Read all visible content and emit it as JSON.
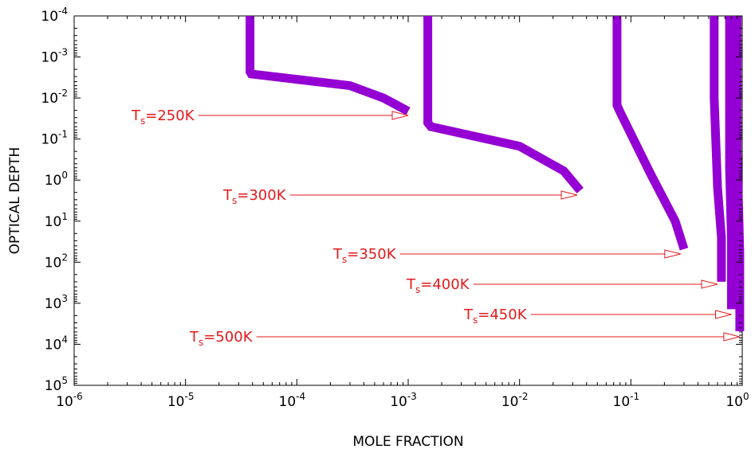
{
  "chart_data": {
    "type": "line",
    "title": "",
    "xlabel": "MOLE FRACTION",
    "ylabel": "OPTICAL DEPTH",
    "x_scale": "log",
    "y_scale": "log",
    "y_inverted": true,
    "xlim": [
      1e-06,
      1
    ],
    "ylim": [
      0.0001,
      100000.0
    ],
    "grid": false,
    "x_ticks": [
      {
        "base": "10",
        "exp": "-6",
        "value": 1e-06
      },
      {
        "base": "10",
        "exp": "-5",
        "value": 1e-05
      },
      {
        "base": "10",
        "exp": "-4",
        "value": 0.0001
      },
      {
        "base": "10",
        "exp": "-3",
        "value": 0.001
      },
      {
        "base": "10",
        "exp": "-2",
        "value": 0.01
      },
      {
        "base": "10",
        "exp": "-1",
        "value": 0.1
      },
      {
        "base": "10",
        "exp": "0",
        "value": 1
      }
    ],
    "y_ticks": [
      {
        "base": "10",
        "exp": "-4",
        "value": 0.0001
      },
      {
        "base": "10",
        "exp": "-3",
        "value": 0.001
      },
      {
        "base": "10",
        "exp": "-2",
        "value": 0.01
      },
      {
        "base": "10",
        "exp": "-1",
        "value": 0.1
      },
      {
        "base": "10",
        "exp": "0",
        "value": 1
      },
      {
        "base": "10",
        "exp": "1",
        "value": 10
      },
      {
        "base": "10",
        "exp": "2",
        "value": 100
      },
      {
        "base": "10",
        "exp": "3",
        "value": 1000
      },
      {
        "base": "10",
        "exp": "4",
        "value": 10000
      },
      {
        "base": "10",
        "exp": "5",
        "value": 100000
      }
    ],
    "series_color": "#9400d3",
    "annotation_color": "#e31a1c",
    "series": [
      {
        "x": [
          3.8e-05,
          3.8e-05,
          3.9e-05,
          0.0003,
          0.0006,
          0.001
        ],
        "y": [
          0.0001,
          0.0023,
          0.0026,
          0.005,
          0.01,
          0.021
        ]
      },
      {
        "x": [
          0.0015,
          0.0015,
          0.0016,
          0.01,
          0.025,
          0.035
        ],
        "y": [
          0.0001,
          0.04,
          0.05,
          0.15,
          0.6,
          1.8
        ]
      },
      {
        "x": [
          0.075,
          0.075,
          0.08,
          0.15,
          0.25,
          0.3
        ],
        "y": [
          0.0001,
          0.015,
          0.022,
          0.7,
          10,
          48
        ]
      },
      {
        "x": [
          0.56,
          0.56,
          0.6,
          0.65,
          0.65
        ],
        "y": [
          0.0001,
          0.01,
          1.5,
          25,
          300
        ]
      },
      {
        "x": [
          0.77,
          0.77,
          0.8,
          0.8
        ],
        "y": [
          0.0001,
          0.5,
          30,
          1400
        ]
      },
      {
        "x": [
          0.9,
          0.9,
          0.95,
          0.95
        ],
        "y": [
          0.0001,
          0.2,
          60,
          4800
        ]
      }
    ],
    "annotations": [
      {
        "prefix": "T",
        "sub": "s",
        "suffix": "=250K",
        "arrow_to": {
          "x": 0.001,
          "y": 0.021
        }
      },
      {
        "prefix": "T",
        "sub": "s",
        "suffix": "=300K",
        "arrow_to": {
          "x": 0.033,
          "y": 1.8
        }
      },
      {
        "prefix": "T",
        "sub": "s",
        "suffix": "=350K",
        "arrow_to": {
          "x": 0.28,
          "y": 48
        }
      },
      {
        "prefix": "T",
        "sub": "s",
        "suffix": "=400K",
        "arrow_to": {
          "x": 0.6,
          "y": 300
        }
      },
      {
        "prefix": "T",
        "sub": "s",
        "suffix": "=450K",
        "arrow_to": {
          "x": 0.8,
          "y": 1400
        }
      },
      {
        "prefix": "T",
        "sub": "s",
        "suffix": "=500K",
        "arrow_to": {
          "x": 0.95,
          "y": 4800
        }
      }
    ]
  }
}
